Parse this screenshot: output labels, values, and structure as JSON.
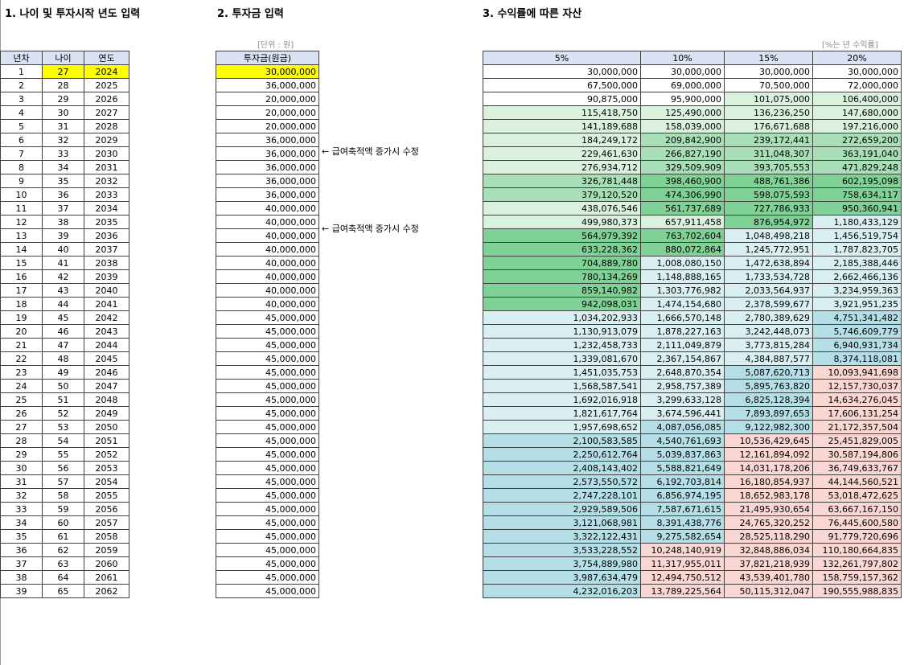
{
  "sections": {
    "s1": "1. 나이 및 투자시작 년도 입력",
    "s2": "2. 투자금 입력",
    "s3": "3. 수익률에 따른 자산"
  },
  "notes": {
    "unit": "[단위 : 원]",
    "rate": "[%는 년 수익률]"
  },
  "memo": "← 급여축적액 증가시 수정",
  "left_headers": [
    "년차",
    "나이",
    "연도"
  ],
  "invest_header": "투자금(원금)",
  "right_headers": [
    "5%",
    "10%",
    "15%",
    "20%"
  ],
  "rows": [
    {
      "n": "1",
      "age": "27",
      "year": "2024",
      "inv": "30,000,000",
      "v": [
        "30,000,000",
        "30,000,000",
        "30,000,000",
        "30,000,000"
      ]
    },
    {
      "n": "2",
      "age": "28",
      "year": "2025",
      "inv": "36,000,000",
      "v": [
        "67,500,000",
        "69,000,000",
        "70,500,000",
        "72,000,000"
      ]
    },
    {
      "n": "3",
      "age": "29",
      "year": "2026",
      "inv": "20,000,000",
      "v": [
        "90,875,000",
        "95,900,000",
        "101,075,000",
        "106,400,000"
      ]
    },
    {
      "n": "4",
      "age": "30",
      "year": "2027",
      "inv": "20,000,000",
      "v": [
        "115,418,750",
        "125,490,000",
        "136,236,250",
        "147,680,000"
      ]
    },
    {
      "n": "5",
      "age": "31",
      "year": "2028",
      "inv": "20,000,000",
      "v": [
        "141,189,688",
        "158,039,000",
        "176,671,688",
        "197,216,000"
      ]
    },
    {
      "n": "6",
      "age": "32",
      "year": "2029",
      "inv": "36,000,000",
      "v": [
        "184,249,172",
        "209,842,900",
        "239,172,441",
        "272,659,200"
      ]
    },
    {
      "n": "7",
      "age": "33",
      "year": "2030",
      "inv": "36,000,000",
      "v": [
        "229,461,630",
        "266,827,190",
        "311,048,307",
        "363,191,040"
      ]
    },
    {
      "n": "8",
      "age": "34",
      "year": "2031",
      "inv": "36,000,000",
      "v": [
        "276,934,712",
        "329,509,909",
        "393,705,553",
        "471,829,248"
      ]
    },
    {
      "n": "9",
      "age": "35",
      "year": "2032",
      "inv": "36,000,000",
      "v": [
        "326,781,448",
        "398,460,900",
        "488,761,386",
        "602,195,098"
      ]
    },
    {
      "n": "10",
      "age": "36",
      "year": "2033",
      "inv": "36,000,000",
      "v": [
        "379,120,520",
        "474,306,990",
        "598,075,593",
        "758,634,117"
      ]
    },
    {
      "n": "11",
      "age": "37",
      "year": "2034",
      "inv": "40,000,000",
      "v": [
        "438,076,546",
        "561,737,689",
        "727,786,933",
        "950,360,941"
      ]
    },
    {
      "n": "12",
      "age": "38",
      "year": "2035",
      "inv": "40,000,000",
      "v": [
        "499,980,373",
        "657,911,458",
        "876,954,972",
        "1,180,433,129"
      ]
    },
    {
      "n": "13",
      "age": "39",
      "year": "2036",
      "inv": "40,000,000",
      "v": [
        "564,979,392",
        "763,702,604",
        "1,048,498,218",
        "1,456,519,754"
      ]
    },
    {
      "n": "14",
      "age": "40",
      "year": "2037",
      "inv": "40,000,000",
      "v": [
        "633,228,362",
        "880,072,864",
        "1,245,772,951",
        "1,787,823,705"
      ]
    },
    {
      "n": "15",
      "age": "41",
      "year": "2038",
      "inv": "40,000,000",
      "v": [
        "704,889,780",
        "1,008,080,150",
        "1,472,638,894",
        "2,185,388,446"
      ]
    },
    {
      "n": "16",
      "age": "42",
      "year": "2039",
      "inv": "40,000,000",
      "v": [
        "780,134,269",
        "1,148,888,165",
        "1,733,534,728",
        "2,662,466,136"
      ]
    },
    {
      "n": "17",
      "age": "43",
      "year": "2040",
      "inv": "40,000,000",
      "v": [
        "859,140,982",
        "1,303,776,982",
        "2,033,564,937",
        "3,234,959,363"
      ]
    },
    {
      "n": "18",
      "age": "44",
      "year": "2041",
      "inv": "40,000,000",
      "v": [
        "942,098,031",
        "1,474,154,680",
        "2,378,599,677",
        "3,921,951,235"
      ]
    },
    {
      "n": "19",
      "age": "45",
      "year": "2042",
      "inv": "45,000,000",
      "v": [
        "1,034,202,933",
        "1,666,570,148",
        "2,780,389,629",
        "4,751,341,482"
      ]
    },
    {
      "n": "20",
      "age": "46",
      "year": "2043",
      "inv": "45,000,000",
      "v": [
        "1,130,913,079",
        "1,878,227,163",
        "3,242,448,073",
        "5,746,609,779"
      ]
    },
    {
      "n": "21",
      "age": "47",
      "year": "2044",
      "inv": "45,000,000",
      "v": [
        "1,232,458,733",
        "2,111,049,879",
        "3,773,815,284",
        "6,940,931,734"
      ]
    },
    {
      "n": "22",
      "age": "48",
      "year": "2045",
      "inv": "45,000,000",
      "v": [
        "1,339,081,670",
        "2,367,154,867",
        "4,384,887,577",
        "8,374,118,081"
      ]
    },
    {
      "n": "23",
      "age": "49",
      "year": "2046",
      "inv": "45,000,000",
      "v": [
        "1,451,035,753",
        "2,648,870,354",
        "5,087,620,713",
        "10,093,941,698"
      ]
    },
    {
      "n": "24",
      "age": "50",
      "year": "2047",
      "inv": "45,000,000",
      "v": [
        "1,568,587,541",
        "2,958,757,389",
        "5,895,763,820",
        "12,157,730,037"
      ]
    },
    {
      "n": "25",
      "age": "51",
      "year": "2048",
      "inv": "45,000,000",
      "v": [
        "1,692,016,918",
        "3,299,633,128",
        "6,825,128,394",
        "14,634,276,045"
      ]
    },
    {
      "n": "26",
      "age": "52",
      "year": "2049",
      "inv": "45,000,000",
      "v": [
        "1,821,617,764",
        "3,674,596,441",
        "7,893,897,653",
        "17,606,131,254"
      ]
    },
    {
      "n": "27",
      "age": "53",
      "year": "2050",
      "inv": "45,000,000",
      "v": [
        "1,957,698,652",
        "4,087,056,085",
        "9,122,982,300",
        "21,172,357,504"
      ]
    },
    {
      "n": "28",
      "age": "54",
      "year": "2051",
      "inv": "45,000,000",
      "v": [
        "2,100,583,585",
        "4,540,761,693",
        "10,536,429,645",
        "25,451,829,005"
      ]
    },
    {
      "n": "29",
      "age": "55",
      "year": "2052",
      "inv": "45,000,000",
      "v": [
        "2,250,612,764",
        "5,039,837,863",
        "12,161,894,092",
        "30,587,194,806"
      ]
    },
    {
      "n": "30",
      "age": "56",
      "year": "2053",
      "inv": "45,000,000",
      "v": [
        "2,408,143,402",
        "5,588,821,649",
        "14,031,178,206",
        "36,749,633,767"
      ]
    },
    {
      "n": "31",
      "age": "57",
      "year": "2054",
      "inv": "45,000,000",
      "v": [
        "2,573,550,572",
        "6,192,703,814",
        "16,180,854,937",
        "44,144,560,521"
      ]
    },
    {
      "n": "32",
      "age": "58",
      "year": "2055",
      "inv": "45,000,000",
      "v": [
        "2,747,228,101",
        "6,856,974,195",
        "18,652,983,178",
        "53,018,472,625"
      ]
    },
    {
      "n": "33",
      "age": "59",
      "year": "2056",
      "inv": "45,000,000",
      "v": [
        "2,929,589,506",
        "7,587,671,615",
        "21,495,930,654",
        "63,667,167,150"
      ]
    },
    {
      "n": "34",
      "age": "60",
      "year": "2057",
      "inv": "45,000,000",
      "v": [
        "3,121,068,981",
        "8,391,438,776",
        "24,765,320,252",
        "76,445,600,580"
      ]
    },
    {
      "n": "35",
      "age": "61",
      "year": "2058",
      "inv": "45,000,000",
      "v": [
        "3,322,122,431",
        "9,275,582,654",
        "28,525,118,290",
        "91,779,720,696"
      ]
    },
    {
      "n": "36",
      "age": "62",
      "year": "2059",
      "inv": "45,000,000",
      "v": [
        "3,533,228,552",
        "10,248,140,919",
        "32,848,886,034",
        "110,180,664,835"
      ]
    },
    {
      "n": "37",
      "age": "63",
      "year": "2060",
      "inv": "45,000,000",
      "v": [
        "3,754,889,980",
        "11,317,955,011",
        "37,821,218,939",
        "132,261,797,802"
      ]
    },
    {
      "n": "38",
      "age": "64",
      "year": "2061",
      "inv": "45,000,000",
      "v": [
        "3,987,634,479",
        "12,494,750,512",
        "43,539,401,780",
        "158,759,157,362"
      ]
    },
    {
      "n": "39",
      "age": "65",
      "year": "2062",
      "inv": "45,000,000",
      "v": [
        "4,232,016,203",
        "13,789,225,564",
        "50,115,312,047",
        "190,555,988,835"
      ]
    }
  ],
  "highlight_color": "#ffff00",
  "band_colors": {
    "white": "#ffffff",
    "green_light": "#d9f1dd",
    "green_mid": "#a8dfb6",
    "green_dark": "#7fd195",
    "blue_light": "#d9eff1",
    "blue_mid": "#b4dfe6",
    "pink": "#fad7d2"
  }
}
